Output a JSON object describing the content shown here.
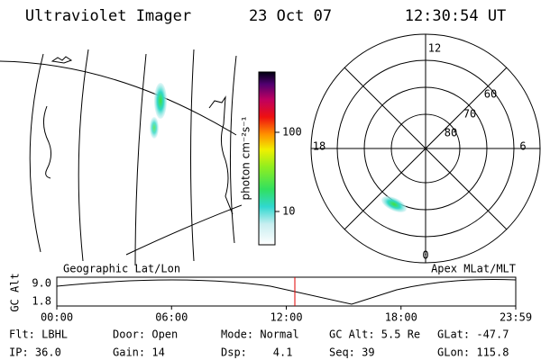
{
  "header": {
    "title": "Ultraviolet Imager",
    "date": "23 Oct 07",
    "time": "12:30:54 UT"
  },
  "colorbar": {
    "label": "photon cm⁻²s⁻¹",
    "ticks": [
      "100",
      "10"
    ]
  },
  "polar": {
    "mlt_labels": [
      "12",
      "18",
      "6",
      "0"
    ],
    "lat_labels": [
      "60",
      "70",
      "80"
    ]
  },
  "panel_labels": {
    "map": "Geographic Lat/Lon",
    "polar": "Apex MLat/MLT"
  },
  "altitude": {
    "axis_label": "GC Alt",
    "ticks": [
      "9.0",
      "1.8"
    ],
    "times": [
      "00:00",
      "06:00",
      "12:00",
      "18:00",
      "23:59"
    ]
  },
  "info": [
    [
      "Flt: LBHL",
      "Door: Open",
      "Mode: Normal",
      "GC Alt: 5.5 Re",
      "GLat: -47.7"
    ],
    [
      "IP: 36.0",
      "Gain: 14",
      "Dsp:    4.1",
      "Seq: 39",
      "GLon: 115.8"
    ]
  ]
}
